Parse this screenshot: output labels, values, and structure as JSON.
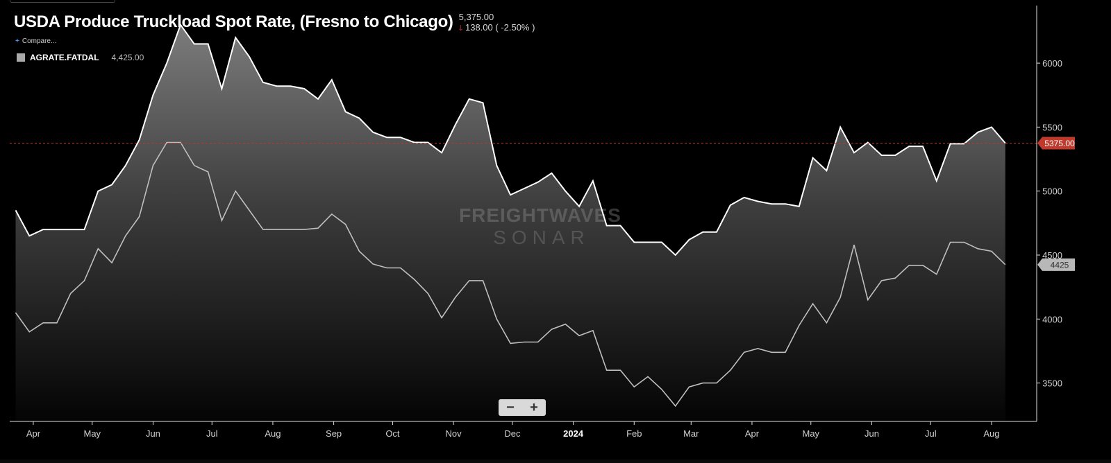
{
  "header": {
    "title": "USDA Produce Truckload Spot Rate, (Fresno to Chicago)",
    "last_value": "5,375.00",
    "change": "138.00 ( -2.50% )",
    "compare_label": "Compare..."
  },
  "legend": {
    "name": "AGRATE.FATDAL",
    "value": "4,425.00"
  },
  "zoom": {
    "minus": "−",
    "plus": "+"
  },
  "watermark": {
    "line1": "FREIGHTWAVES",
    "line2": "SONAR"
  },
  "colors": {
    "background": "#000000",
    "primary_line": "#ffffff",
    "secondary_line": "#bfbfbf",
    "last_price_badge": "#c0392b",
    "secondary_badge": "#b8b8b8"
  },
  "chart_data": {
    "type": "area",
    "ylim": [
      3200,
      6450
    ],
    "y_ticks": [
      3500,
      4000,
      4500,
      5000,
      5500,
      6000
    ],
    "x_range": [
      "2023-03-20",
      "2024-08-24"
    ],
    "x_ticks": [
      {
        "date": "2023-04-01",
        "label": "Apr"
      },
      {
        "date": "2023-05-01",
        "label": "May"
      },
      {
        "date": "2023-06-01",
        "label": "Jun"
      },
      {
        "date": "2023-07-01",
        "label": "Jul"
      },
      {
        "date": "2023-08-01",
        "label": "Aug"
      },
      {
        "date": "2023-09-01",
        "label": "Sep"
      },
      {
        "date": "2023-10-01",
        "label": "Oct"
      },
      {
        "date": "2023-11-01",
        "label": "Nov"
      },
      {
        "date": "2023-12-01",
        "label": "Dec"
      },
      {
        "date": "2024-01-01",
        "label": "2024"
      },
      {
        "date": "2024-02-01",
        "label": "Feb"
      },
      {
        "date": "2024-03-01",
        "label": "Mar"
      },
      {
        "date": "2024-04-01",
        "label": "Apr"
      },
      {
        "date": "2024-05-01",
        "label": "May"
      },
      {
        "date": "2024-06-01",
        "label": "Jun"
      },
      {
        "date": "2024-07-01",
        "label": "Jul"
      },
      {
        "date": "2024-08-01",
        "label": "Aug"
      }
    ],
    "last_value_line": 5375,
    "series": [
      {
        "values": [
          [
            "2023-03-23",
            4850
          ],
          [
            "2023-03-30",
            4650
          ],
          [
            "2023-04-06",
            4700
          ],
          [
            "2023-04-13",
            4700
          ],
          [
            "2023-04-20",
            4700
          ],
          [
            "2023-04-27",
            4700
          ],
          [
            "2023-05-04",
            5000
          ],
          [
            "2023-05-11",
            5050
          ],
          [
            "2023-05-18",
            5200
          ],
          [
            "2023-05-25",
            5400
          ],
          [
            "2023-06-01",
            5750
          ],
          [
            "2023-06-08",
            6000
          ],
          [
            "2023-06-15",
            6300
          ],
          [
            "2023-06-22",
            6150
          ],
          [
            "2023-06-29",
            6150
          ],
          [
            "2023-07-06",
            5800
          ],
          [
            "2023-07-13",
            6200
          ],
          [
            "2023-07-20",
            6050
          ],
          [
            "2023-07-27",
            5850
          ],
          [
            "2023-08-03",
            5820
          ],
          [
            "2023-08-10",
            5820
          ],
          [
            "2023-08-17",
            5800
          ],
          [
            "2023-08-24",
            5720
          ],
          [
            "2023-08-31",
            5870
          ],
          [
            "2023-09-07",
            5620
          ],
          [
            "2023-09-14",
            5570
          ],
          [
            "2023-09-21",
            5460
          ],
          [
            "2023-09-28",
            5420
          ],
          [
            "2023-10-05",
            5420
          ],
          [
            "2023-10-12",
            5380
          ],
          [
            "2023-10-19",
            5380
          ],
          [
            "2023-10-26",
            5300
          ],
          [
            "2023-11-02",
            5520
          ],
          [
            "2023-11-09",
            5720
          ],
          [
            "2023-11-16",
            5690
          ],
          [
            "2023-11-23",
            5200
          ],
          [
            "2023-11-30",
            4970
          ],
          [
            "2023-12-07",
            5020
          ],
          [
            "2023-12-14",
            5070
          ],
          [
            "2023-12-21",
            5140
          ],
          [
            "2023-12-28",
            5000
          ],
          [
            "2024-01-04",
            4880
          ],
          [
            "2024-01-11",
            5080
          ],
          [
            "2024-01-18",
            4730
          ],
          [
            "2024-01-25",
            4730
          ],
          [
            "2024-02-01",
            4600
          ],
          [
            "2024-02-08",
            4600
          ],
          [
            "2024-02-15",
            4600
          ],
          [
            "2024-02-22",
            4500
          ],
          [
            "2024-02-29",
            4620
          ],
          [
            "2024-03-07",
            4680
          ],
          [
            "2024-03-14",
            4680
          ],
          [
            "2024-03-21",
            4890
          ],
          [
            "2024-03-28",
            4950
          ],
          [
            "2024-04-04",
            4920
          ],
          [
            "2024-04-11",
            4900
          ],
          [
            "2024-04-18",
            4900
          ],
          [
            "2024-04-25",
            4880
          ],
          [
            "2024-05-02",
            5260
          ],
          [
            "2024-05-09",
            5160
          ],
          [
            "2024-05-16",
            5500
          ],
          [
            "2024-05-23",
            5300
          ],
          [
            "2024-05-30",
            5380
          ],
          [
            "2024-06-06",
            5280
          ],
          [
            "2024-06-13",
            5280
          ],
          [
            "2024-06-20",
            5350
          ],
          [
            "2024-06-27",
            5350
          ],
          [
            "2024-07-04",
            5080
          ],
          [
            "2024-07-11",
            5370
          ],
          [
            "2024-07-18",
            5370
          ],
          [
            "2024-07-25",
            5460
          ],
          [
            "2024-08-01",
            5500
          ],
          [
            "2024-08-08",
            5375
          ]
        ]
      },
      {
        "values": [
          [
            "2023-03-23",
            4050
          ],
          [
            "2023-03-30",
            3900
          ],
          [
            "2023-04-06",
            3970
          ],
          [
            "2023-04-13",
            3970
          ],
          [
            "2023-04-20",
            4200
          ],
          [
            "2023-04-27",
            4300
          ],
          [
            "2023-05-04",
            4550
          ],
          [
            "2023-05-11",
            4440
          ],
          [
            "2023-05-18",
            4650
          ],
          [
            "2023-05-25",
            4800
          ],
          [
            "2023-06-01",
            5200
          ],
          [
            "2023-06-08",
            5380
          ],
          [
            "2023-06-15",
            5380
          ],
          [
            "2023-06-22",
            5200
          ],
          [
            "2023-06-29",
            5150
          ],
          [
            "2023-07-06",
            4770
          ],
          [
            "2023-07-13",
            5000
          ],
          [
            "2023-07-20",
            4850
          ],
          [
            "2023-07-27",
            4700
          ],
          [
            "2023-08-03",
            4700
          ],
          [
            "2023-08-10",
            4700
          ],
          [
            "2023-08-17",
            4700
          ],
          [
            "2023-08-24",
            4710
          ],
          [
            "2023-08-31",
            4820
          ],
          [
            "2023-09-07",
            4740
          ],
          [
            "2023-09-14",
            4530
          ],
          [
            "2023-09-21",
            4430
          ],
          [
            "2023-09-28",
            4400
          ],
          [
            "2023-10-05",
            4400
          ],
          [
            "2023-10-12",
            4310
          ],
          [
            "2023-10-19",
            4200
          ],
          [
            "2023-10-26",
            4010
          ],
          [
            "2023-11-02",
            4170
          ],
          [
            "2023-11-09",
            4300
          ],
          [
            "2023-11-16",
            4300
          ],
          [
            "2023-11-23",
            4000
          ],
          [
            "2023-11-30",
            3810
          ],
          [
            "2023-12-07",
            3820
          ],
          [
            "2023-12-14",
            3820
          ],
          [
            "2023-12-21",
            3920
          ],
          [
            "2023-12-28",
            3960
          ],
          [
            "2024-01-04",
            3870
          ],
          [
            "2024-01-11",
            3910
          ],
          [
            "2024-01-18",
            3600
          ],
          [
            "2024-01-25",
            3600
          ],
          [
            "2024-02-01",
            3470
          ],
          [
            "2024-02-08",
            3550
          ],
          [
            "2024-02-15",
            3450
          ],
          [
            "2024-02-22",
            3320
          ],
          [
            "2024-02-29",
            3470
          ],
          [
            "2024-03-07",
            3500
          ],
          [
            "2024-03-14",
            3500
          ],
          [
            "2024-03-21",
            3600
          ],
          [
            "2024-03-28",
            3740
          ],
          [
            "2024-04-04",
            3770
          ],
          [
            "2024-04-11",
            3740
          ],
          [
            "2024-04-18",
            3740
          ],
          [
            "2024-04-25",
            3950
          ],
          [
            "2024-05-02",
            4120
          ],
          [
            "2024-05-09",
            3970
          ],
          [
            "2024-05-16",
            4170
          ],
          [
            "2024-05-23",
            4580
          ],
          [
            "2024-05-30",
            4150
          ],
          [
            "2024-06-06",
            4300
          ],
          [
            "2024-06-13",
            4320
          ],
          [
            "2024-06-20",
            4420
          ],
          [
            "2024-06-27",
            4420
          ],
          [
            "2024-07-04",
            4350
          ],
          [
            "2024-07-11",
            4600
          ],
          [
            "2024-07-18",
            4600
          ],
          [
            "2024-07-25",
            4550
          ],
          [
            "2024-08-01",
            4530
          ],
          [
            "2024-08-08",
            4425
          ]
        ]
      }
    ]
  }
}
